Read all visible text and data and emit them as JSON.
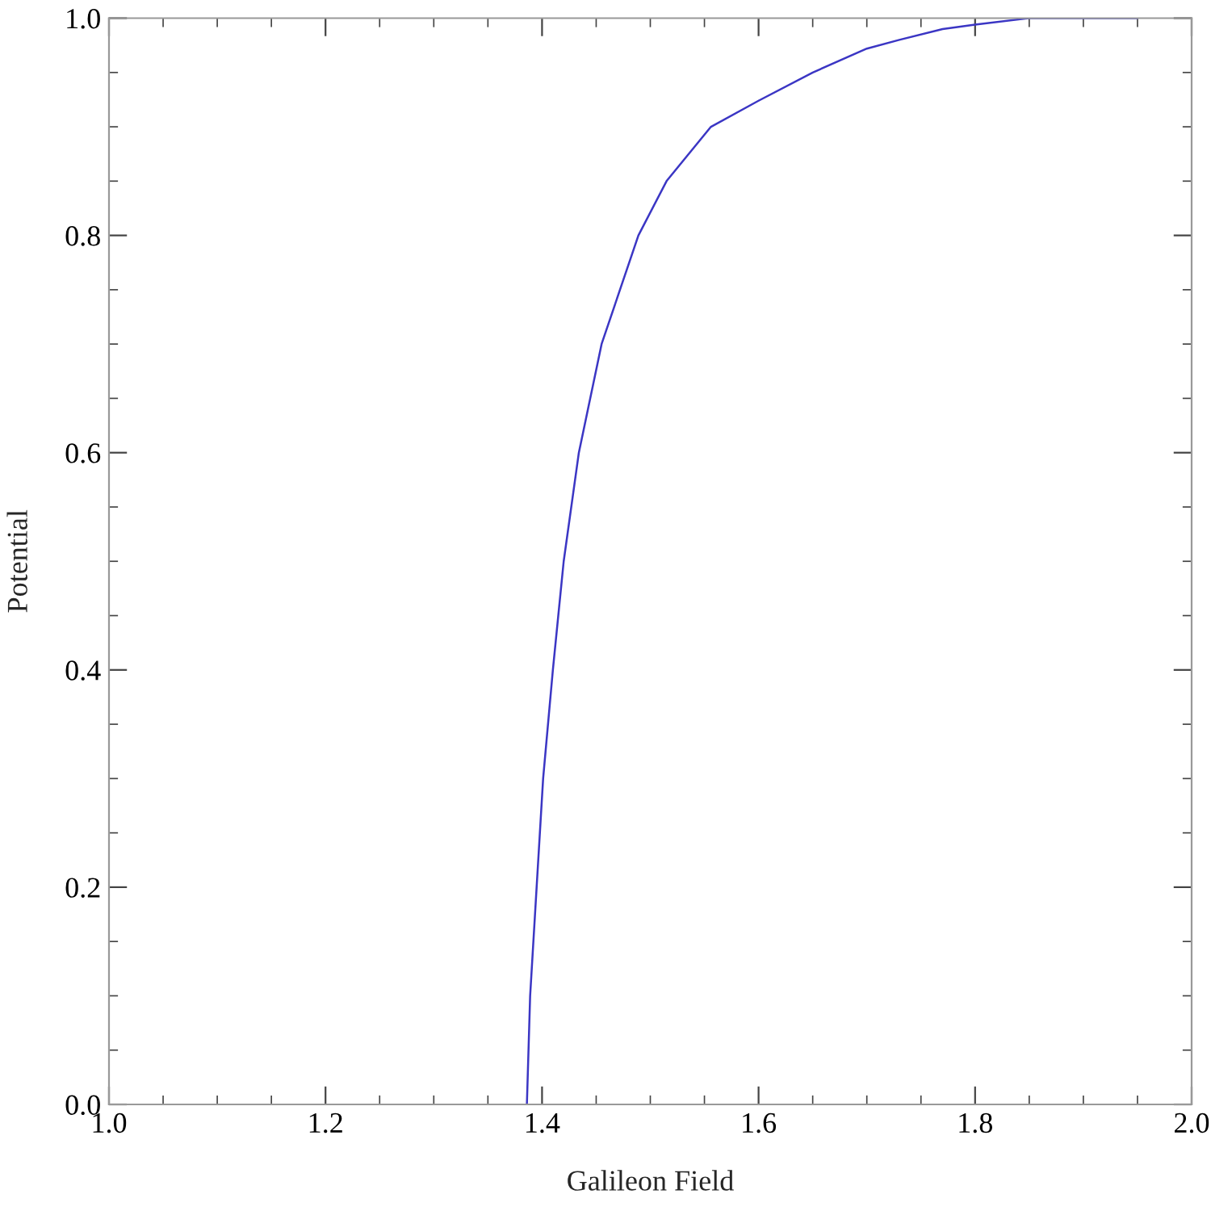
{
  "chart_data": {
    "type": "line",
    "xlabel": "Galileon Field",
    "ylabel": "Potential",
    "series": [
      {
        "color": "#3b36c4",
        "x": [
          1.386,
          1.389,
          1.395,
          1.401,
          1.41,
          1.42,
          1.434,
          1.455,
          1.489,
          1.515,
          1.556,
          1.6,
          1.65,
          1.7,
          1.73,
          1.77,
          1.8,
          1.85,
          1.9,
          1.95
        ],
        "values": [
          0,
          0.1,
          0.2,
          0.3,
          0.4,
          0.5,
          0.6,
          0.7,
          0.8,
          0.85,
          0.9,
          0.924,
          0.95,
          0.972,
          0.98,
          0.99,
          0.994,
          1.0,
          1.0,
          1.0
        ]
      }
    ],
    "xlim": [
      1.0,
      2.0
    ],
    "ylim": [
      0.0,
      1.0
    ],
    "xticks": [
      {
        "value": 1.0,
        "label": "1.0"
      },
      {
        "value": 1.05,
        "label": null
      },
      {
        "value": 1.1,
        "label": null
      },
      {
        "value": 1.15,
        "label": null
      },
      {
        "value": 1.2,
        "label": "1.2"
      },
      {
        "value": 1.25,
        "label": null
      },
      {
        "value": 1.3,
        "label": null
      },
      {
        "value": 1.35,
        "label": null
      },
      {
        "value": 1.4,
        "label": "1.4"
      },
      {
        "value": 1.45,
        "label": null
      },
      {
        "value": 1.5,
        "label": null
      },
      {
        "value": 1.55,
        "label": null
      },
      {
        "value": 1.6,
        "label": "1.6"
      },
      {
        "value": 1.65,
        "label": null
      },
      {
        "value": 1.7,
        "label": null
      },
      {
        "value": 1.75,
        "label": null
      },
      {
        "value": 1.8,
        "label": "1.8"
      },
      {
        "value": 1.85,
        "label": null
      },
      {
        "value": 1.9,
        "label": null
      },
      {
        "value": 1.95,
        "label": null
      },
      {
        "value": 2.0,
        "label": "2.0"
      }
    ],
    "yticks": [
      {
        "value": 0.0,
        "label": "0.0"
      },
      {
        "value": 0.05,
        "label": null
      },
      {
        "value": 0.1,
        "label": null
      },
      {
        "value": 0.15,
        "label": null
      },
      {
        "value": 0.2,
        "label": "0.2"
      },
      {
        "value": 0.25,
        "label": null
      },
      {
        "value": 0.3,
        "label": null
      },
      {
        "value": 0.35,
        "label": null
      },
      {
        "value": 0.4,
        "label": "0.4"
      },
      {
        "value": 0.45,
        "label": null
      },
      {
        "value": 0.5,
        "label": null
      },
      {
        "value": 0.55,
        "label": null
      },
      {
        "value": 0.6,
        "label": "0.6"
      },
      {
        "value": 0.65,
        "label": null
      },
      {
        "value": 0.7,
        "label": null
      },
      {
        "value": 0.75,
        "label": null
      },
      {
        "value": 0.8,
        "label": "0.8"
      },
      {
        "value": 0.85,
        "label": null
      },
      {
        "value": 0.9,
        "label": null
      },
      {
        "value": 0.95,
        "label": null
      },
      {
        "value": 1.0,
        "label": "1.0"
      }
    ],
    "grid": false,
    "legend": false,
    "marker": "none",
    "line_style": "solid"
  }
}
